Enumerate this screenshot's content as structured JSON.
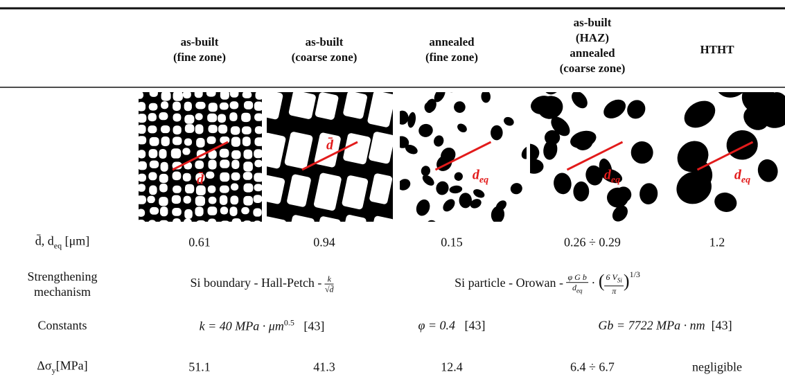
{
  "header": {
    "columns": [
      [
        "as-built",
        "(fine zone)"
      ],
      [
        "as-built",
        "(coarse zone)"
      ],
      [
        "annealed",
        "(fine zone)"
      ],
      [
        "as-built",
        "(HAZ)",
        "annealed",
        "(coarse zone)"
      ],
      [
        "HTHT"
      ]
    ]
  },
  "images": [
    {
      "label": "d̄"
    },
    {
      "label": "d̄"
    },
    {
      "label": "d",
      "sub": "eq"
    },
    {
      "label": "d",
      "sub": "eq"
    },
    {
      "label": "d",
      "sub": "eq"
    }
  ],
  "rows": {
    "size": {
      "label": {
        "text": "d̄, d",
        "sub": "eq",
        "unit": " [μm]"
      },
      "values": [
        "0.61",
        "0.94",
        "0.15",
        "0.26 ÷ 0.29",
        "1.2"
      ]
    },
    "mechanism": {
      "label": [
        "Strengthening",
        "mechanism"
      ],
      "boundary": {
        "text": "Si boundary - Hall-Petch - ",
        "num": "k",
        "den": "√d̄"
      },
      "particle": {
        "text": "Si particle - Orowan - ",
        "num1": "φ G b",
        "den1": "d",
        "den1_sub": "eq",
        "dot": " · ",
        "open": "(",
        "num2": "6 V",
        "num2_sub": "Si",
        "den2": "π",
        "close": ")",
        "exp": "1/3"
      }
    },
    "constants": {
      "label": "Constants",
      "k": {
        "text": "k = 40 MPa · μm",
        "sup": "0.5",
        "ref": "[43]"
      },
      "phi": {
        "text": "φ = 0.4",
        "ref": "[43]"
      },
      "gb": {
        "text": "Gb = 7722 MPa · nm",
        "ref": "[43]"
      }
    },
    "strength": {
      "label": {
        "text": "Δσ",
        "sub": "y",
        "unit": "[MPa]"
      },
      "values": [
        "51.1",
        "41.3",
        "12.4",
        "6.4 ÷ 6.7",
        "negligible"
      ]
    }
  }
}
